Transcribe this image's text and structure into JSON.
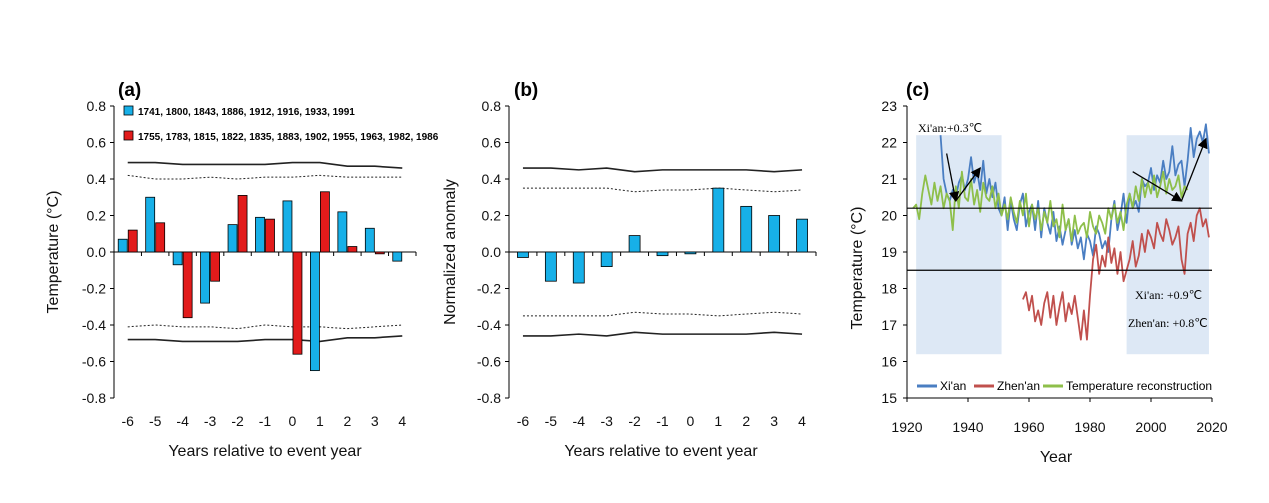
{
  "colors": {
    "blue": "#17b0e8",
    "red": "#e21b1b",
    "xian": "#4a7ec2",
    "zhenan": "#c0504d",
    "recon": "#8ebf4a",
    "shade": "#dde8f5"
  },
  "chart_data": [
    {
      "panel": "(a)",
      "type": "bar",
      "ylabel": "Temperature (°C)",
      "xlabel": "Years relative to event year",
      "ylim": [
        -0.8,
        0.8
      ],
      "yticks": [
        "0.8",
        "0.6",
        "0.4",
        "0.2",
        "0.0",
        "-0.2",
        "-0.4",
        "-0.6",
        "-0.8"
      ],
      "categories": [
        "-6",
        "-5",
        "-4",
        "-3",
        "-2",
        "-1",
        "0",
        "1",
        "2",
        "3",
        "4"
      ],
      "series": [
        {
          "name": "1741, 1800, 1843, 1886, 1912, 1916, 1933, 1991",
          "color": "#17b0e8",
          "values": [
            0.07,
            0.3,
            -0.07,
            -0.28,
            0.15,
            0.19,
            0.28,
            -0.65,
            0.22,
            0.13,
            -0.05
          ]
        },
        {
          "name": "1755, 1783, 1815, 1822, 1835, 1883, 1902, 1955, 1963, 1982, 1986",
          "color": "#e21b1b",
          "values": [
            0.12,
            0.16,
            -0.36,
            -0.16,
            0.31,
            0.18,
            -0.56,
            0.33,
            0.03,
            -0.01,
            null
          ]
        }
      ],
      "conf_upper_solid": [
        0.49,
        0.49,
        0.48,
        0.48,
        0.48,
        0.48,
        0.49,
        0.49,
        0.47,
        0.47,
        0.46
      ],
      "conf_upper_dotted": [
        0.42,
        0.4,
        0.4,
        0.41,
        0.4,
        0.41,
        0.41,
        0.42,
        0.41,
        0.41,
        0.41
      ],
      "conf_lower_dotted": [
        -0.41,
        -0.4,
        -0.41,
        -0.41,
        -0.42,
        -0.4,
        -0.41,
        -0.41,
        -0.42,
        -0.41,
        -0.4
      ],
      "conf_lower_solid": [
        -0.48,
        -0.48,
        -0.49,
        -0.49,
        -0.49,
        -0.48,
        -0.48,
        -0.49,
        -0.47,
        -0.47,
        -0.46
      ]
    },
    {
      "panel": "(b)",
      "type": "bar",
      "ylabel": "Normalized anomaly",
      "xlabel": "Years relative to event year",
      "ylim": [
        -0.8,
        0.8
      ],
      "yticks": [
        "0.8",
        "0.6",
        "0.4",
        "0.2",
        "0.0",
        "-0.2",
        "-0.4",
        "-0.6",
        "-0.8"
      ],
      "categories": [
        "-6",
        "-5",
        "-4",
        "-3",
        "-2",
        "-1",
        "0",
        "1",
        "2",
        "3",
        "4"
      ],
      "series": [
        {
          "color": "#17b0e8",
          "values": [
            -0.03,
            -0.16,
            -0.17,
            -0.08,
            0.09,
            -0.02,
            -0.01,
            0.35,
            0.25,
            0.2,
            0.18
          ]
        }
      ],
      "conf_upper_solid": [
        0.46,
        0.46,
        0.45,
        0.46,
        0.44,
        0.45,
        0.45,
        0.45,
        0.45,
        0.44,
        0.45
      ],
      "conf_upper_dotted": [
        0.35,
        0.35,
        0.35,
        0.35,
        0.33,
        0.34,
        0.34,
        0.35,
        0.34,
        0.33,
        0.34
      ],
      "conf_lower_dotted": [
        -0.35,
        -0.35,
        -0.35,
        -0.35,
        -0.33,
        -0.34,
        -0.34,
        -0.35,
        -0.34,
        -0.33,
        -0.34
      ],
      "conf_lower_solid": [
        -0.46,
        -0.46,
        -0.45,
        -0.46,
        -0.44,
        -0.45,
        -0.45,
        -0.45,
        -0.45,
        -0.44,
        -0.45
      ]
    },
    {
      "panel": "(c)",
      "type": "line",
      "ylabel": "Temperature (°C)",
      "xlabel": "Year",
      "xlim": [
        1920,
        2020
      ],
      "ylim": [
        15,
        23
      ],
      "xticks": [
        "1920",
        "1940",
        "1960",
        "1980",
        "2000",
        "2020"
      ],
      "yticks": [
        "23",
        "22",
        "21",
        "20",
        "19",
        "18",
        "17",
        "16",
        "15"
      ],
      "shaded_periods": [
        [
          1923,
          1951
        ],
        [
          1992,
          2019
        ]
      ],
      "hlines": [
        20.2,
        18.5
      ],
      "annotations": [
        "Xi'an:+0.3℃",
        "Xi'an: +0.9℃",
        "Zhen'an: +0.8℃"
      ],
      "legend": [
        "Xi'an",
        "Zhen'an",
        "Temperature reconstruction"
      ],
      "series": [
        {
          "name": "Xi'an",
          "color": "#4a7ec2",
          "x": [
            1931,
            1932,
            1933,
            1934,
            1935,
            1936,
            1937,
            1938,
            1939,
            1940,
            1941,
            1942,
            1943,
            1944,
            1945,
            1946,
            1947,
            1948,
            1949,
            1950,
            1951,
            1952,
            1953,
            1954,
            1955,
            1956,
            1957,
            1958,
            1959,
            1960,
            1961,
            1962,
            1963,
            1964,
            1965,
            1966,
            1967,
            1968,
            1969,
            1970,
            1971,
            1972,
            1973,
            1974,
            1975,
            1976,
            1977,
            1978,
            1979,
            1980,
            1981,
            1982,
            1983,
            1984,
            1985,
            1986,
            1987,
            1988,
            1989,
            1990,
            1991,
            1992,
            1993,
            1994,
            1995,
            1996,
            1997,
            1998,
            1999,
            2000,
            2001,
            2002,
            2003,
            2004,
            2005,
            2006,
            2007,
            2008,
            2009,
            2010,
            2011,
            2012,
            2013,
            2014,
            2015,
            2016,
            2017,
            2018,
            2019
          ],
          "y": [
            22.2,
            21.0,
            20.6,
            20.4,
            20.7,
            20.5,
            20.9,
            21.1,
            20.7,
            21.0,
            21.6,
            20.9,
            21.2,
            20.7,
            21.5,
            20.6,
            21.0,
            20.5,
            20.9,
            20.2,
            20.0,
            20.5,
            19.6,
            20.4,
            19.9,
            19.6,
            20.3,
            20.6,
            19.7,
            20.1,
            20.3,
            19.6,
            20.4,
            19.4,
            20.2,
            19.8,
            19.5,
            20.1,
            19.3,
            19.7,
            19.2,
            19.6,
            19.9,
            19.2,
            19.6,
            19.1,
            19.4,
            18.8,
            19.5,
            19.3,
            18.9,
            19.7,
            19.5,
            19.1,
            19.3,
            19.0,
            19.9,
            20.4,
            19.6,
            20.0,
            20.6,
            19.8,
            20.6,
            20.2,
            20.4,
            20.1,
            21.0,
            20.8,
            20.9,
            21.3,
            20.7,
            21.1,
            20.9,
            21.5,
            21.0,
            21.2,
            21.9,
            21.1,
            21.4,
            21.5,
            20.8,
            21.5,
            22.4,
            21.6,
            22.1,
            22.3,
            22.0,
            22.5,
            21.7
          ]
        },
        {
          "name": "Zhen'an",
          "color": "#c0504d",
          "x": [
            1958,
            1959,
            1960,
            1961,
            1962,
            1963,
            1964,
            1965,
            1966,
            1967,
            1968,
            1969,
            1970,
            1971,
            1972,
            1973,
            1974,
            1975,
            1976,
            1977,
            1978,
            1979,
            1980,
            1981,
            1982,
            1983,
            1984,
            1985,
            1986,
            1987,
            1988,
            1989,
            1990,
            1991,
            1992,
            1993,
            1994,
            1995,
            1996,
            1997,
            1998,
            1999,
            2000,
            2001,
            2002,
            2003,
            2004,
            2005,
            2006,
            2007,
            2008,
            2009,
            2010,
            2011,
            2012,
            2013,
            2014,
            2015,
            2016,
            2017,
            2018,
            2019
          ],
          "y": [
            17.7,
            17.9,
            17.4,
            17.8,
            17.1,
            17.4,
            17.0,
            17.6,
            17.9,
            17.2,
            17.8,
            17.0,
            17.5,
            17.9,
            17.1,
            17.6,
            17.3,
            17.8,
            17.2,
            16.6,
            17.4,
            16.6,
            17.8,
            18.8,
            19.2,
            18.4,
            18.9,
            18.6,
            19.4,
            18.7,
            19.1,
            18.4,
            19.0,
            18.2,
            18.5,
            18.8,
            19.3,
            18.6,
            18.9,
            19.5,
            19.0,
            19.6,
            19.4,
            19.1,
            19.8,
            19.5,
            19.3,
            19.9,
            19.6,
            19.2,
            19.4,
            19.7,
            18.8,
            18.4,
            19.5,
            19.8,
            19.3,
            20.0,
            20.2,
            19.7,
            19.9,
            19.4
          ]
        },
        {
          "name": "Temperature reconstruction",
          "color": "#8ebf4a",
          "x": [
            1922,
            1923,
            1924,
            1925,
            1926,
            1927,
            1928,
            1929,
            1930,
            1931,
            1932,
            1933,
            1934,
            1935,
            1936,
            1937,
            1938,
            1939,
            1940,
            1941,
            1942,
            1943,
            1944,
            1945,
            1946,
            1947,
            1948,
            1949,
            1950,
            1951,
            1952,
            1953,
            1954,
            1955,
            1956,
            1957,
            1958,
            1959,
            1960,
            1961,
            1962,
            1963,
            1964,
            1965,
            1966,
            1967,
            1968,
            1969,
            1970,
            1971,
            1972,
            1973,
            1974,
            1975,
            1976,
            1977,
            1978,
            1979,
            1980,
            1981,
            1982,
            1983,
            1984,
            1985,
            1986,
            1987,
            1988,
            1989,
            1990,
            1991,
            1992,
            1993,
            1994,
            1995,
            1996,
            1997,
            1998,
            1999,
            2000,
            2001,
            2002,
            2003,
            2004,
            2005,
            2006,
            2007,
            2008,
            2009,
            2010,
            2011,
            2012
          ],
          "y": [
            20.2,
            20.3,
            19.9,
            20.6,
            21.1,
            20.7,
            20.3,
            20.9,
            20.4,
            20.8,
            20.2,
            20.6,
            20.4,
            19.6,
            20.8,
            20.2,
            21.2,
            20.5,
            20.4,
            21.0,
            20.3,
            20.7,
            20.1,
            20.9,
            20.5,
            20.4,
            20.8,
            20.2,
            20.6,
            20.0,
            20.3,
            19.9,
            20.5,
            20.1,
            19.8,
            20.4,
            20.0,
            20.6,
            19.7,
            20.3,
            19.9,
            20.2,
            19.6,
            20.1,
            19.8,
            20.4,
            19.7,
            19.9,
            19.4,
            20.3,
            19.6,
            19.9,
            19.3,
            20.0,
            19.5,
            19.7,
            19.8,
            19.4,
            20.1,
            19.7,
            19.5,
            20.0,
            19.8,
            19.5,
            20.2,
            19.9,
            20.3,
            19.8,
            20.1,
            19.6,
            20.3,
            20.6,
            20.2,
            20.8,
            20.4,
            21.0,
            20.5,
            20.9,
            20.6,
            21.1,
            20.5,
            20.8,
            21.2,
            20.6,
            21.0,
            20.7,
            20.8,
            21.1,
            20.5,
            20.8,
            20.7
          ]
        }
      ]
    }
  ]
}
